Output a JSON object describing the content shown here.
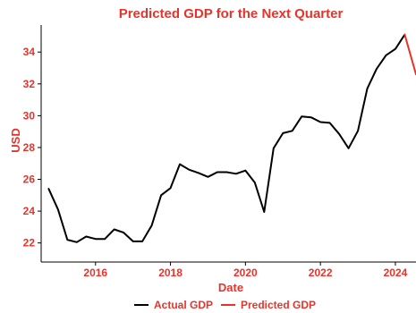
{
  "chart_data": {
    "type": "line",
    "title": "Predicted GDP for the Next Quarter",
    "xlabel": "Date",
    "ylabel": "USD",
    "xlim": [
      2014.55,
      2024.55
    ],
    "ylim": [
      20.8,
      35.7
    ],
    "x_ticks": [
      2016,
      2018,
      2020,
      2022,
      2024
    ],
    "x_tick_labels": [
      "2016",
      "2018",
      "2020",
      "2022",
      "2024"
    ],
    "y_ticks": [
      22,
      24,
      26,
      28,
      30,
      32,
      34
    ],
    "y_tick_labels": [
      "22",
      "24",
      "26",
      "28",
      "30",
      "32",
      "34"
    ],
    "grid": false,
    "legend_position": "bottom",
    "colors": {
      "title": "#e8332b",
      "labels": "#e8332b",
      "actual": "#000000",
      "predicted": "#e8332b"
    },
    "series": [
      {
        "name": "Actual GDP",
        "x": [
          2014.75,
          2015.0,
          2015.25,
          2015.5,
          2015.75,
          2016.0,
          2016.25,
          2016.5,
          2016.75,
          2017.0,
          2017.25,
          2017.5,
          2017.75,
          2018.0,
          2018.25,
          2018.5,
          2018.75,
          2019.0,
          2019.25,
          2019.5,
          2019.75,
          2020.0,
          2020.25,
          2020.5,
          2020.75,
          2021.0,
          2021.25,
          2021.5,
          2021.75,
          2022.0,
          2022.25,
          2022.5,
          2022.75,
          2023.0,
          2023.25,
          2023.5,
          2023.75,
          2024.0,
          2024.25
        ],
        "values": [
          25.4,
          24.1,
          22.2,
          22.05,
          22.4,
          22.25,
          22.25,
          22.85,
          22.65,
          22.1,
          22.1,
          23.1,
          25.0,
          25.45,
          26.95,
          26.6,
          26.4,
          26.15,
          26.45,
          26.45,
          26.35,
          26.55,
          25.8,
          23.95,
          27.95,
          28.9,
          29.05,
          29.95,
          29.9,
          29.6,
          29.55,
          28.85,
          27.95,
          29.05,
          31.7,
          32.95,
          33.8,
          34.2,
          35.1
        ]
      },
      {
        "name": "Predicted GDP",
        "x": [
          2024.25,
          2024.55
        ],
        "values": [
          35.1,
          32.6
        ]
      }
    ]
  }
}
